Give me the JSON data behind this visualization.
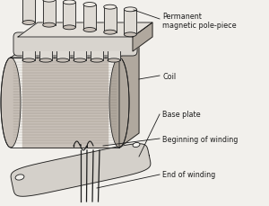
{
  "bg_color": "#f2f0ec",
  "lc": "#1c1c1c",
  "lw": 0.6,
  "fs": 5.8,
  "coil_fill": "#c8c0b8",
  "coil_hatch_color": "#8a8278",
  "coil_top_fill": "#dedad4",
  "coil_side_fill": "#b0a89e",
  "plate_fill": "#d8d4ce",
  "plate_top_fill": "#e4e0da",
  "pole_fill": "#dedad4",
  "pole_side_fill": "#c8c0b8",
  "base_fill": "#d4d0ca",
  "labels": {
    "pole_piece_1": "Permanent",
    "pole_piece_2": "magnetic pole-piece",
    "coil": "Coil",
    "base_plate": "Base plate",
    "begin_winding": "Beginning of winding",
    "end_winding": "End of winding"
  }
}
